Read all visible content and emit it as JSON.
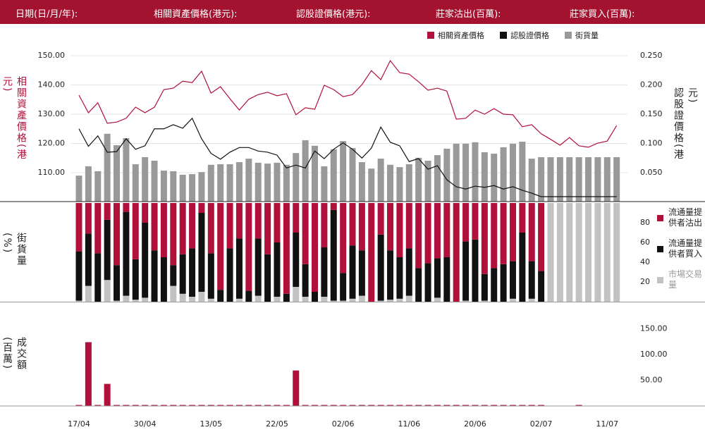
{
  "header": {
    "labels": [
      "日期(日/月/年):",
      "相關資產價格(港元):",
      "認股證價格(港元):",
      "莊家沽出(百萬):",
      "莊家買入(百萬):"
    ]
  },
  "chart_data": [
    {
      "type": "combo",
      "ylabel": "相關資產價格(港元)",
      "y2label": "認股證價格(港元)",
      "ylim": [
        100,
        150
      ],
      "yticks": [
        {
          "value": 110,
          "label": "110.00"
        },
        {
          "value": 120,
          "label": "120.00"
        },
        {
          "value": 130,
          "label": "130.00"
        },
        {
          "value": 140,
          "label": "140.00"
        },
        {
          "value": 150,
          "label": "150.00"
        }
      ],
      "y2lim": [
        0,
        0.25
      ],
      "y2ticks": [
        {
          "value": 0.05,
          "label": "0.050"
        },
        {
          "value": 0.1,
          "label": "0.100"
        },
        {
          "value": 0.15,
          "label": "0.150"
        },
        {
          "value": 0.2,
          "label": "0.200"
        },
        {
          "value": 0.25,
          "label": "0.250"
        }
      ],
      "grid": true,
      "series": [
        {
          "name": "相關資產價格",
          "color": "#b0103a",
          "mark": "line",
          "axis": "y",
          "values": [
            136.5,
            130.5,
            133.9,
            126.9,
            127.3,
            128.6,
            132.4,
            130.5,
            132.4,
            138.4,
            138.9,
            141.3,
            140.8,
            144.7,
            137.2,
            139.4,
            135.3,
            131.4,
            135.1,
            136.7,
            137.5,
            136.3,
            137.0,
            129.8,
            132.2,
            131.7,
            139.9,
            138.4,
            136.0,
            136.7,
            140.1,
            144.9,
            141.8,
            148.3,
            144.2,
            143.7,
            141.1,
            138.2,
            138.9,
            137.9,
            128.3,
            128.6,
            131.4,
            130.0,
            131.9,
            130.0,
            129.8,
            125.7,
            126.4,
            123.3,
            121.4,
            119.4,
            122.0,
            119.2,
            118.7,
            120.1,
            120.8,
            126.1
          ]
        },
        {
          "name": "認股證價格",
          "color": "#111111",
          "mark": "line",
          "axis": "y2",
          "values": [
            0.125,
            0.095,
            0.113,
            0.085,
            0.086,
            0.108,
            0.09,
            0.096,
            0.125,
            0.125,
            0.132,
            0.126,
            0.143,
            0.108,
            0.083,
            0.073,
            0.085,
            0.093,
            0.093,
            0.087,
            0.085,
            0.08,
            0.058,
            0.063,
            0.058,
            0.087,
            0.074,
            0.09,
            0.101,
            0.09,
            0.075,
            0.092,
            0.128,
            0.102,
            0.096,
            0.069,
            0.074,
            0.056,
            0.062,
            0.038,
            0.026,
            0.022,
            0.027,
            0.025,
            0.028,
            0.022,
            0.026,
            0.02,
            0.015,
            0.009,
            0.009,
            0.009,
            0.009,
            0.009,
            0.009,
            0.009,
            0.009,
            0.009
          ]
        },
        {
          "name": "街貨量",
          "color": "#999999",
          "mark": "bar",
          "axis": "y",
          "values": [
            109.0,
            112.2,
            110.5,
            123.3,
            119.4,
            121.8,
            112.9,
            115.3,
            114.1,
            110.7,
            110.5,
            109.3,
            109.5,
            110.2,
            112.7,
            112.9,
            112.9,
            113.6,
            114.8,
            113.4,
            113.1,
            113.4,
            112.7,
            116.7,
            121.1,
            119.2,
            112.2,
            118.0,
            120.8,
            118.4,
            113.6,
            111.4,
            114.8,
            112.7,
            111.9,
            112.9,
            115.1,
            114.1,
            116.0,
            118.2,
            119.9,
            119.9,
            120.4,
            117.0,
            116.5,
            118.7,
            119.9,
            120.6,
            114.8,
            115.3,
            115.3,
            115.3,
            115.3,
            115.3,
            115.3,
            115.3,
            115.3,
            115.3
          ]
        }
      ]
    },
    {
      "type": "stacked_bar",
      "ylabel": "街貨量(%)",
      "ylim": [
        0,
        100
      ],
      "yticks": [
        20,
        40,
        60,
        80
      ],
      "series": [
        {
          "name": "流通量提供者沽出",
          "color": "#b0103a",
          "values": [
            49,
            31,
            51,
            17,
            63,
            9,
            57,
            20,
            48,
            55,
            63,
            52,
            46,
            10,
            51,
            88,
            46,
            36,
            89,
            36,
            52,
            40,
            92,
            30,
            62,
            90,
            45,
            7,
            71,
            43,
            48,
            100,
            32,
            48,
            55,
            46,
            66,
            61,
            56,
            55,
            100,
            39,
            37,
            72,
            66,
            62,
            59,
            30,
            59,
            69,
            0,
            0,
            0,
            0,
            0,
            0,
            0,
            0
          ]
        },
        {
          "name": "流通量提供者買入",
          "color": "#111111",
          "values": [
            50,
            53,
            49,
            61,
            36,
            85,
            41,
            76,
            52,
            45,
            21,
            40,
            49,
            80,
            46,
            12,
            54,
            61,
            11,
            58,
            48,
            55,
            8,
            55,
            33,
            10,
            50,
            92,
            28,
            54,
            46,
            0,
            67,
            50,
            42,
            48,
            34,
            39,
            40,
            45,
            0,
            60,
            63,
            27,
            34,
            38,
            38,
            70,
            38,
            31,
            0,
            0,
            0,
            0,
            0,
            0,
            0,
            0
          ]
        },
        {
          "name": "市場交易量",
          "color": "#c2c2c2",
          "values": [
            1,
            16,
            0,
            22,
            1,
            6,
            2,
            4,
            0,
            0,
            16,
            8,
            5,
            10,
            3,
            0,
            0,
            3,
            0,
            6,
            0,
            5,
            0,
            15,
            5,
            0,
            5,
            1,
            1,
            3,
            6,
            0,
            1,
            2,
            3,
            6,
            0,
            0,
            4,
            0,
            0,
            1,
            0,
            1,
            0,
            0,
            3,
            0,
            3,
            0,
            100,
            100,
            100,
            100,
            100,
            100,
            100,
            100
          ]
        }
      ]
    },
    {
      "type": "bar",
      "ylabel": "成交額(百萬)",
      "ylim": [
        0,
        200
      ],
      "yticks": [
        {
          "value": 50,
          "label": "50.00"
        },
        {
          "value": 100,
          "label": "100.00"
        },
        {
          "value": 150,
          "label": "150.00"
        }
      ],
      "color": "#b0103a",
      "categories": [
        "17/04",
        null,
        null,
        null,
        null,
        null,
        null,
        "30/04",
        null,
        null,
        null,
        null,
        null,
        null,
        "13/05",
        null,
        null,
        null,
        null,
        null,
        null,
        "22/05",
        null,
        null,
        null,
        null,
        null,
        null,
        "02/06",
        null,
        null,
        null,
        null,
        null,
        null,
        "11/06",
        null,
        null,
        null,
        null,
        null,
        null,
        "20/06",
        null,
        null,
        null,
        null,
        null,
        null,
        "02/07",
        null,
        null,
        null,
        null,
        null,
        null,
        "11/07",
        null
      ],
      "values": [
        2,
        124,
        2,
        43,
        2,
        2,
        2,
        2,
        2,
        2,
        2,
        2,
        2,
        2,
        2,
        2,
        2,
        2,
        2,
        2,
        2,
        2,
        2,
        69,
        2,
        2,
        2,
        2,
        2,
        2,
        2,
        2,
        2,
        2,
        2,
        2,
        2,
        2,
        2,
        2,
        2,
        2,
        2,
        2,
        2,
        2,
        2,
        2,
        2,
        2,
        0,
        0,
        0,
        2,
        0,
        0,
        0,
        0
      ]
    }
  ]
}
